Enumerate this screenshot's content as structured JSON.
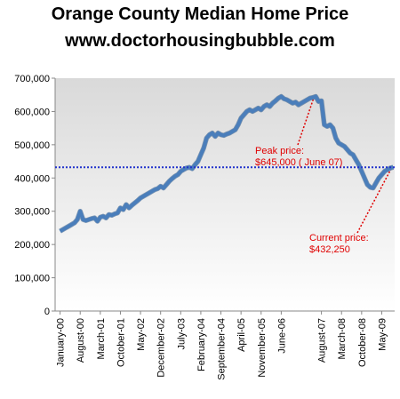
{
  "chart_data": {
    "type": "line",
    "title": "Orange County Median Home Price",
    "subtitle": "www.doctorhousingbubble.com",
    "categories": [
      "January-00",
      null,
      null,
      null,
      null,
      null,
      null,
      "August-00",
      null,
      null,
      null,
      null,
      null,
      null,
      "March-01",
      null,
      null,
      null,
      null,
      null,
      null,
      "October-01",
      null,
      null,
      null,
      null,
      null,
      null,
      "May-02",
      null,
      null,
      null,
      null,
      null,
      null,
      "December-02",
      null,
      null,
      null,
      null,
      null,
      null,
      "July-03",
      null,
      null,
      null,
      null,
      null,
      null,
      "February-04",
      null,
      null,
      null,
      null,
      null,
      null,
      "September-04",
      null,
      null,
      null,
      null,
      null,
      null,
      "April-05",
      null,
      null,
      null,
      null,
      null,
      null,
      "November-05",
      null,
      null,
      null,
      null,
      null,
      null,
      "June-06",
      null,
      null,
      null,
      null,
      null,
      null,
      null,
      null,
      null,
      null,
      null,
      null,
      null,
      "August-07",
      null,
      null,
      null,
      null,
      null,
      null,
      "March-08",
      null,
      null,
      null,
      null,
      null,
      null,
      "October-08",
      null,
      null,
      null,
      null,
      null,
      null,
      "May-09",
      null,
      null,
      null,
      null
    ],
    "series": [
      {
        "name": "Median price",
        "color": "#4a7ebb",
        "values": [
          240000,
          245000,
          250000,
          255000,
          260000,
          265000,
          275000,
          300000,
          275000,
          272000,
          275000,
          278000,
          280000,
          270000,
          282000,
          285000,
          280000,
          290000,
          288000,
          292000,
          295000,
          310000,
          305000,
          320000,
          310000,
          318000,
          325000,
          332000,
          340000,
          345000,
          350000,
          355000,
          360000,
          365000,
          368000,
          375000,
          370000,
          380000,
          390000,
          398000,
          405000,
          410000,
          420000,
          425000,
          430000,
          432000,
          428000,
          440000,
          450000,
          470000,
          490000,
          520000,
          530000,
          535000,
          525000,
          535000,
          530000,
          528000,
          532000,
          535000,
          540000,
          545000,
          560000,
          580000,
          590000,
          600000,
          605000,
          600000,
          605000,
          610000,
          605000,
          615000,
          620000,
          615000,
          625000,
          632000,
          640000,
          645000,
          638000,
          635000,
          630000,
          625000,
          628000,
          620000,
          625000,
          630000,
          635000,
          640000,
          642000,
          645000,
          630000,
          632000,
          560000,
          555000,
          560000,
          550000,
          520000,
          505000,
          500000,
          495000,
          485000,
          475000,
          470000,
          455000,
          440000,
          420000,
          400000,
          380000,
          372000,
          370000,
          385000,
          400000,
          410000,
          420000,
          425000,
          430000,
          432250
        ]
      }
    ],
    "ylim": [
      0,
      700000
    ],
    "yticks": [
      0,
      {
        "value": 100000,
        "label": "100,000"
      },
      {
        "value": 200000,
        "label": "200,000"
      },
      {
        "value": 300000,
        "label": "300,000"
      },
      {
        "value": 400000,
        "label": "400,000"
      },
      {
        "value": 500000,
        "label": "500,000"
      },
      {
        "value": 600000,
        "label": "600,000"
      },
      {
        "value": 700000,
        "label": "700,000"
      }
    ],
    "reference_line": 432250,
    "reference_color": "#2233cc",
    "annotations": [
      {
        "lines": [
          "Peak price:",
          "$645,000 ( June 07)"
        ]
      },
      {
        "lines": [
          "Current price:",
          "$432,250"
        ]
      }
    ]
  }
}
